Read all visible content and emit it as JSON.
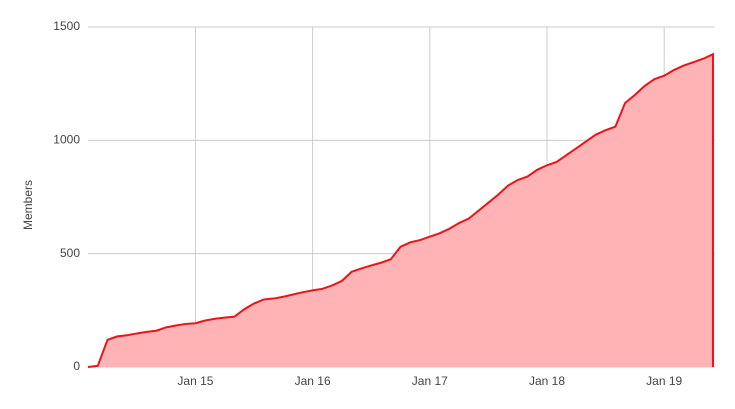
{
  "chart_data": {
    "type": "area",
    "y_label": "Members",
    "x": [
      "2014-02",
      "2014-03",
      "2014-04",
      "2014-05",
      "2014-06",
      "2014-07",
      "2014-08",
      "2014-09",
      "2014-10",
      "2014-11",
      "2014-12",
      "2015-01",
      "2015-02",
      "2015-03",
      "2015-04",
      "2015-05",
      "2015-06",
      "2015-07",
      "2015-08",
      "2015-09",
      "2015-10",
      "2015-11",
      "2015-12",
      "2016-01",
      "2016-02",
      "2016-03",
      "2016-04",
      "2016-05",
      "2016-06",
      "2016-07",
      "2016-08",
      "2016-09",
      "2016-10",
      "2016-11",
      "2016-12",
      "2017-01",
      "2017-02",
      "2017-03",
      "2017-04",
      "2017-05",
      "2017-06",
      "2017-07",
      "2017-08",
      "2017-09",
      "2017-10",
      "2017-11",
      "2017-12",
      "2018-01",
      "2018-02",
      "2018-03",
      "2018-04",
      "2018-05",
      "2018-06",
      "2018-07",
      "2018-08",
      "2018-09",
      "2018-10",
      "2018-11",
      "2018-12",
      "2019-01",
      "2019-02",
      "2019-03",
      "2019-04",
      "2019-05",
      "2019-06"
    ],
    "series": [
      {
        "name": "Members",
        "color": "#e8151b",
        "fill": "#ffb3b5",
        "values": [
          0,
          5,
          120,
          135,
          140,
          148,
          155,
          160,
          175,
          183,
          190,
          193,
          205,
          213,
          218,
          222,
          255,
          280,
          298,
          302,
          310,
          320,
          330,
          338,
          345,
          360,
          380,
          420,
          435,
          448,
          460,
          475,
          530,
          550,
          560,
          575,
          590,
          610,
          635,
          655,
          690,
          725,
          760,
          800,
          825,
          840,
          870,
          890,
          905,
          935,
          965,
          995,
          1025,
          1045,
          1060,
          1165,
          1200,
          1240,
          1270,
          1285,
          1310,
          1330,
          1345,
          1360,
          1380
        ]
      }
    ],
    "xlim": [
      "2014-02",
      "2019-06"
    ],
    "xticks": [
      {
        "value": "2015-01",
        "label": "Jan 15"
      },
      {
        "value": "2016-01",
        "label": "Jan 16"
      },
      {
        "value": "2017-01",
        "label": "Jan 17"
      },
      {
        "value": "2018-01",
        "label": "Jan 18"
      },
      {
        "value": "2019-01",
        "label": "Jan 19"
      }
    ],
    "ylim": [
      0,
      1500
    ],
    "yticks": [
      0,
      500,
      1000,
      1500
    ],
    "grid": true
  }
}
